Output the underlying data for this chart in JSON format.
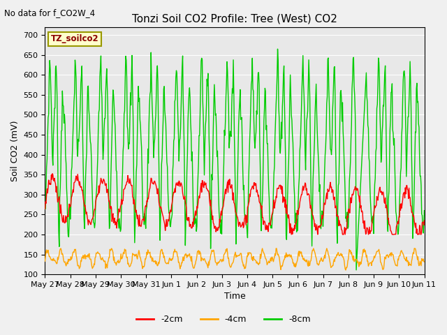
{
  "title": "Tonzi Soil CO2 Profile: Tree (West) CO2",
  "subtitle": "No data for f_CO2W_4",
  "ylabel": "Soil CO2 (mV)",
  "xlabel": "Time",
  "ylim": [
    100,
    720
  ],
  "yticks": [
    100,
    150,
    200,
    250,
    300,
    350,
    400,
    450,
    500,
    550,
    600,
    650,
    700
  ],
  "series_labels": [
    "-2cm",
    "-4cm",
    "-8cm"
  ],
  "series_colors": [
    "#ff0000",
    "#ffa500",
    "#00cc00"
  ],
  "line_width": 1.0,
  "bg_color": "#e8e8e8",
  "plot_bg_color": "#e8e8e8",
  "grid_color": "#ffffff",
  "x_tick_labels": [
    "May 27",
    "May 28",
    "May 29",
    "May 30",
    "May 31",
    "Jun 1",
    "Jun 2",
    "Jun 3",
    "Jun 4",
    "Jun 5",
    "Jun 6",
    "Jun 7",
    "Jun 8",
    "Jun 9",
    "Jun 10",
    "Jun 11"
  ],
  "n_days": 15,
  "pts_per_day": 48,
  "fig_width": 6.4,
  "fig_height": 4.8,
  "dpi": 100
}
